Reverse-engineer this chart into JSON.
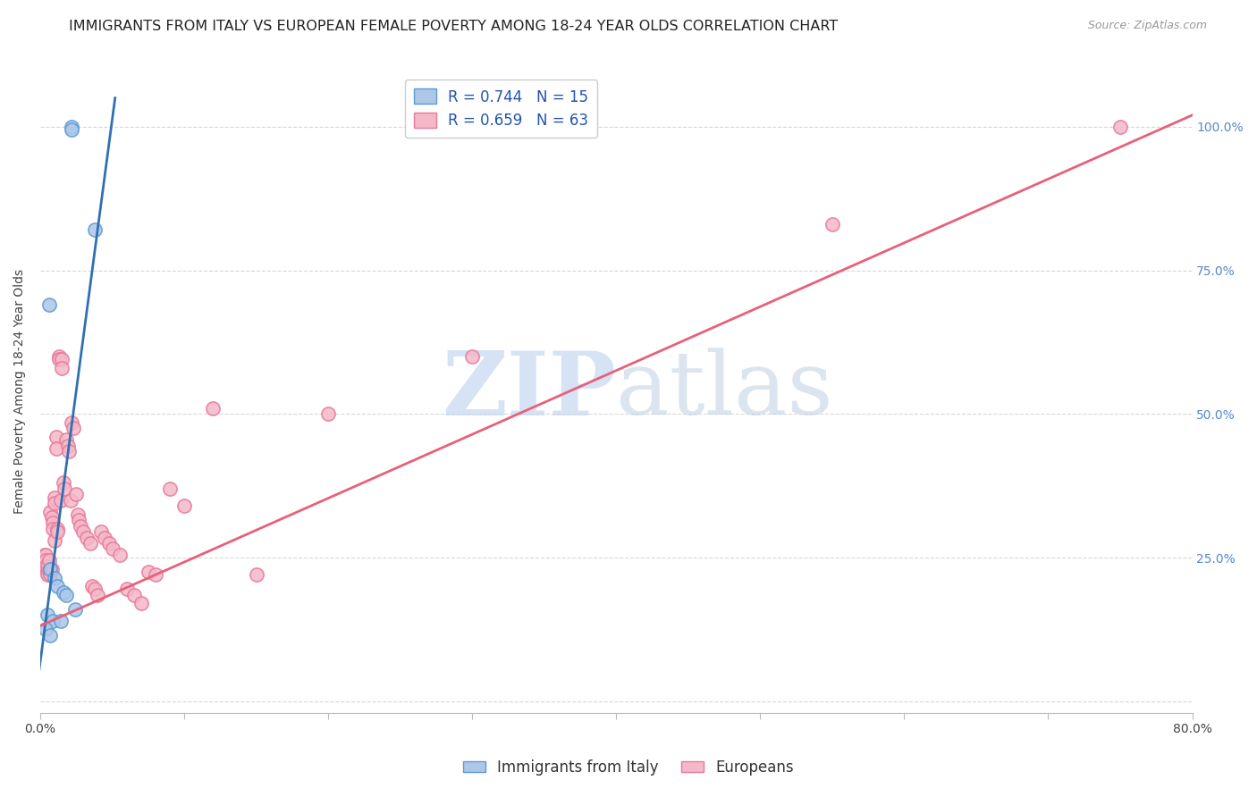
{
  "title": "IMMIGRANTS FROM ITALY VS EUROPEAN FEMALE POVERTY AMONG 18-24 YEAR OLDS CORRELATION CHART",
  "source": "Source: ZipAtlas.com",
  "ylabel": "Female Poverty Among 18-24 Year Olds",
  "yticks": [
    0.0,
    0.25,
    0.5,
    0.75,
    1.0
  ],
  "ytick_labels": [
    "",
    "25.0%",
    "50.0%",
    "75.0%",
    "100.0%"
  ],
  "xlim": [
    0.0,
    0.8
  ],
  "ylim": [
    -0.02,
    1.1
  ],
  "legend_r1": "R = 0.744   N = 15",
  "legend_r2": "R = 0.659   N = 63",
  "legend_label1": "Immigrants from Italy",
  "legend_label2": "Europeans",
  "blue_color": "#aec6e8",
  "pink_color": "#f4b8c8",
  "blue_edge_color": "#5b9bd5",
  "pink_edge_color": "#e8799a",
  "blue_line_color": "#3070b0",
  "pink_line_color": "#e8607a",
  "blue_scatter_x": [
    0.022,
    0.022,
    0.038,
    0.006,
    0.007,
    0.01,
    0.012,
    0.016,
    0.018,
    0.024,
    0.005,
    0.009,
    0.014,
    0.004,
    0.007
  ],
  "blue_scatter_y": [
    1.0,
    0.995,
    0.82,
    0.69,
    0.23,
    0.215,
    0.2,
    0.19,
    0.185,
    0.16,
    0.15,
    0.14,
    0.14,
    0.125,
    0.115
  ],
  "pink_scatter_x": [
    0.003,
    0.004,
    0.004,
    0.004,
    0.005,
    0.005,
    0.005,
    0.006,
    0.006,
    0.007,
    0.007,
    0.008,
    0.008,
    0.009,
    0.009,
    0.01,
    0.01,
    0.01,
    0.011,
    0.011,
    0.012,
    0.012,
    0.013,
    0.013,
    0.014,
    0.015,
    0.015,
    0.016,
    0.017,
    0.018,
    0.019,
    0.02,
    0.021,
    0.022,
    0.023,
    0.025,
    0.026,
    0.027,
    0.028,
    0.03,
    0.032,
    0.035,
    0.036,
    0.038,
    0.04,
    0.042,
    0.045,
    0.048,
    0.05,
    0.055,
    0.06,
    0.065,
    0.07,
    0.075,
    0.08,
    0.09,
    0.1,
    0.12,
    0.15,
    0.2,
    0.3,
    0.55,
    0.75
  ],
  "pink_scatter_y": [
    0.255,
    0.255,
    0.245,
    0.235,
    0.235,
    0.225,
    0.22,
    0.245,
    0.225,
    0.22,
    0.33,
    0.32,
    0.23,
    0.31,
    0.3,
    0.355,
    0.345,
    0.28,
    0.46,
    0.44,
    0.3,
    0.295,
    0.6,
    0.595,
    0.35,
    0.595,
    0.58,
    0.38,
    0.37,
    0.455,
    0.445,
    0.435,
    0.35,
    0.485,
    0.475,
    0.36,
    0.325,
    0.315,
    0.305,
    0.295,
    0.285,
    0.275,
    0.2,
    0.195,
    0.185,
    0.295,
    0.285,
    0.275,
    0.265,
    0.255,
    0.195,
    0.185,
    0.17,
    0.225,
    0.22,
    0.37,
    0.34,
    0.51,
    0.22,
    0.5,
    0.6,
    0.83,
    1.0
  ],
  "blue_trend_x": [
    -0.002,
    0.052
  ],
  "blue_trend_y": [
    0.03,
    1.05
  ],
  "pink_trend_x": [
    -0.01,
    0.8
  ],
  "pink_trend_y": [
    0.12,
    1.02
  ],
  "watermark_zip": "ZIP",
  "watermark_atlas": "atlas",
  "background_color": "#ffffff",
  "grid_color": "#d8d8d8",
  "title_fontsize": 11.5,
  "axis_label_fontsize": 10,
  "tick_fontsize": 10,
  "legend_fontsize": 12,
  "source_fontsize": 9
}
